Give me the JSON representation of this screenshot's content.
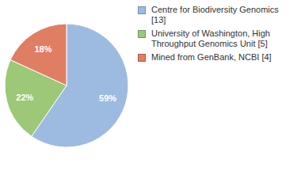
{
  "chart_data": {
    "type": "pie",
    "categories": [
      "Centre for Biodiversity Genomics [13]",
      "University of Washington, High Throughput Genomics Unit [5]",
      "Mined from GenBank, NCBI [4]"
    ],
    "values": [
      59,
      22,
      18
    ],
    "colors": [
      "#9dbbe0",
      "#9cc877",
      "#e07e63"
    ],
    "data_labels": true,
    "legend": "top-right"
  }
}
